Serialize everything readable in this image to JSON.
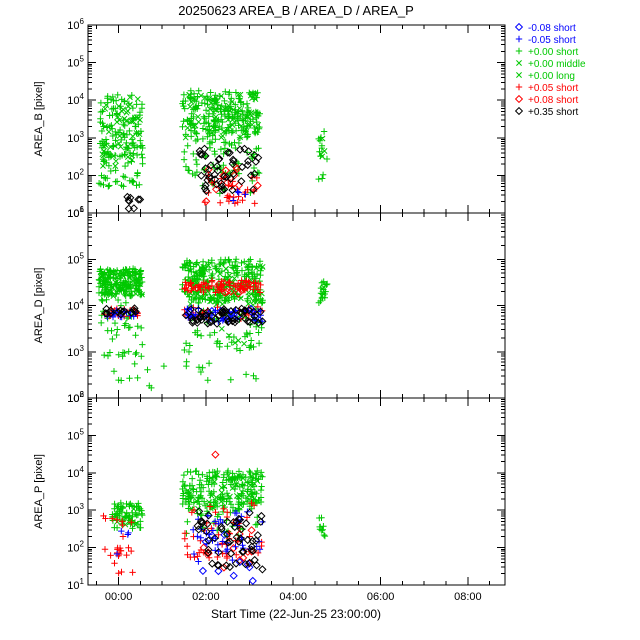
{
  "title": "20250623 AREA_B / AREA_D / AREA_P",
  "legend": {
    "items": [
      {
        "symbol": "diamond",
        "color": "#0000ff",
        "label": "-0.08 short"
      },
      {
        "symbol": "plus",
        "color": "#0000ff",
        "label": "-0.05 short"
      },
      {
        "symbol": "plus",
        "color": "#00c800",
        "label": "+0.00 short"
      },
      {
        "symbol": "cross",
        "color": "#00c800",
        "label": "+0.00 middle"
      },
      {
        "symbol": "cross",
        "color": "#00c800",
        "label": "+0.00 long"
      },
      {
        "symbol": "plus",
        "color": "#ff0000",
        "label": "+0.05 short"
      },
      {
        "symbol": "diamond",
        "color": "#ff0000",
        "label": "+0.08 short"
      },
      {
        "symbol": "diamond",
        "color": "#000000",
        "label": "+0.35 short"
      }
    ]
  },
  "chart_data": {
    "type": "scatter",
    "title": "20250623 AREA_B / AREA_D / AREA_P",
    "x": {
      "label": "Start Time (22-Jun-25 23:00:00)",
      "range": [
        -0.7,
        8.85
      ],
      "major_ticks": [
        0,
        2,
        4,
        6,
        8
      ],
      "tick_labels": [
        "00:00",
        "02:00",
        "04:00",
        "06:00",
        "08:00"
      ],
      "minor_step": 0.5,
      "units": "hours relative to 00:00 on 23-Jun-25"
    },
    "y_scale": "log10",
    "seed": 20250623,
    "cluster_format": "[n_points, x_min_hours, x_max_hours, log10_y_min, log10_y_max]",
    "panels": [
      {
        "ylabel": "AREA_B [pixel]",
        "log_range": [
          1,
          6
        ],
        "series": [
          {
            "legend": "+0.00 short",
            "symbol": "plus",
            "color": "#00c800",
            "clusters": [
              [
                90,
                -0.45,
                0.55,
                2.5,
                4.15
              ],
              [
                50,
                -0.45,
                0.55,
                1.7,
                2.9
              ],
              [
                180,
                1.45,
                3.25,
                3.1,
                4.25
              ],
              [
                70,
                1.5,
                3.25,
                2.0,
                3.2
              ],
              [
                15,
                1.9,
                3.1,
                1.5,
                2.2
              ],
              [
                12,
                4.58,
                4.78,
                1.9,
                3.2
              ]
            ]
          },
          {
            "legend": "+0.00 middle",
            "symbol": "cross",
            "color": "#00c800",
            "clusters": [
              [
                35,
                -0.4,
                0.5,
                2.2,
                4.1
              ],
              [
                45,
                1.5,
                3.2,
                3.0,
                4.2
              ],
              [
                4,
                4.6,
                4.75,
                2.2,
                3.0
              ]
            ]
          },
          {
            "legend": "+0.00 long",
            "symbol": "cross",
            "color": "#00c800",
            "clusters": [
              [
                12,
                -0.35,
                0.45,
                2.6,
                4.0
              ],
              [
                18,
                1.6,
                3.15,
                3.2,
                4.2
              ]
            ]
          },
          {
            "legend": "+0.05 short",
            "symbol": "plus",
            "color": "#ff0000",
            "clusters": [
              [
                32,
                1.9,
                3.25,
                1.25,
                2.1
              ]
            ]
          },
          {
            "legend": "+0.08 short",
            "symbol": "diamond",
            "color": "#ff0000",
            "clusters": [
              [
                12,
                2.0,
                3.2,
                1.3,
                2.3
              ]
            ]
          },
          {
            "legend": "-0.05 short",
            "symbol": "plus",
            "color": "#0000ff",
            "clusters": [
              [
                4,
                2.6,
                3.1,
                1.2,
                1.6
              ]
            ]
          },
          {
            "legend": "+0.35 short",
            "symbol": "diamond",
            "color": "#000000",
            "clusters": [
              [
                8,
                0.2,
                0.5,
                1.1,
                1.55
              ],
              [
                48,
                1.8,
                3.25,
                1.55,
                2.75
              ]
            ]
          }
        ]
      },
      {
        "ylabel": "AREA_D [pixel]",
        "log_range": [
          2,
          6
        ],
        "series": [
          {
            "legend": "+0.00 short",
            "symbol": "plus",
            "color": "#00c800",
            "clusters": [
              [
                140,
                -0.45,
                0.55,
                4.2,
                4.8
              ],
              [
                40,
                -0.4,
                0.55,
                2.9,
                4.15
              ],
              [
                5,
                -0.35,
                0.5,
                2.25,
                2.9
              ],
              [
                220,
                1.45,
                3.3,
                4.05,
                5.0
              ],
              [
                55,
                1.5,
                3.3,
                3.0,
                4.0
              ],
              [
                12,
                1.55,
                3.25,
                2.35,
                3.0
              ],
              [
                15,
                4.58,
                4.78,
                4.05,
                4.55
              ],
              [
                5,
                -0.3,
                1.2,
                2.2,
                2.9
              ]
            ]
          },
          {
            "legend": "+0.00 middle",
            "symbol": "cross",
            "color": "#00c800",
            "clusters": [
              [
                40,
                -0.45,
                0.55,
                4.2,
                4.75
              ],
              [
                60,
                1.5,
                3.3,
                4.0,
                4.9
              ],
              [
                8,
                1.6,
                3.2,
                3.1,
                3.9
              ],
              [
                4,
                4.6,
                4.75,
                4.1,
                4.4
              ]
            ]
          },
          {
            "legend": "+0.00 long",
            "symbol": "cross",
            "color": "#00c800",
            "clusters": [
              [
                12,
                -0.4,
                0.5,
                4.25,
                4.7
              ],
              [
                18,
                1.6,
                3.2,
                4.1,
                4.8
              ]
            ]
          },
          {
            "legend": "+0.05 short",
            "symbol": "plus",
            "color": "#ff0000",
            "clusters": [
              [
                20,
                -0.35,
                0.45,
                3.75,
                3.95
              ],
              [
                70,
                1.5,
                3.3,
                4.28,
                4.55
              ],
              [
                25,
                1.5,
                3.3,
                3.7,
                3.98
              ]
            ]
          },
          {
            "legend": "+0.08 short",
            "symbol": "diamond",
            "color": "#ff0000",
            "clusters": [
              [
                12,
                1.6,
                3.2,
                4.25,
                4.5
              ]
            ]
          },
          {
            "legend": "-0.05 short",
            "symbol": "plus",
            "color": "#0000ff",
            "clusters": [
              [
                15,
                -0.3,
                0.4,
                3.72,
                3.9
              ],
              [
                45,
                1.5,
                3.3,
                3.65,
                3.95
              ]
            ]
          },
          {
            "legend": "-0.08 short",
            "symbol": "diamond",
            "color": "#0000ff",
            "clusters": [
              [
                10,
                1.6,
                3.2,
                3.7,
                3.95
              ]
            ]
          },
          {
            "legend": "+0.35 short",
            "symbol": "diamond",
            "color": "#000000",
            "clusters": [
              [
                15,
                -0.3,
                0.45,
                3.78,
                3.97
              ],
              [
                55,
                1.5,
                3.3,
                3.6,
                3.95
              ]
            ]
          }
        ]
      },
      {
        "ylabel": "AREA_P [pixel]",
        "log_range": [
          1,
          6
        ],
        "series": [
          {
            "legend": "+0.00 short",
            "symbol": "plus",
            "color": "#00c800",
            "clusters": [
              [
                70,
                -0.15,
                0.55,
                2.5,
                3.2
              ],
              [
                190,
                1.45,
                3.3,
                3.0,
                4.05
              ],
              [
                30,
                1.5,
                3.3,
                2.3,
                3.0
              ],
              [
                10,
                4.58,
                4.75,
                2.3,
                2.9
              ]
            ]
          },
          {
            "legend": "+0.00 middle",
            "symbol": "cross",
            "color": "#00c800",
            "clusters": [
              [
                8,
                -0.1,
                0.5,
                2.6,
                3.1
              ],
              [
                25,
                1.5,
                3.25,
                3.0,
                3.95
              ]
            ]
          },
          {
            "legend": "+0.00 long",
            "symbol": "cross",
            "color": "#00c800",
            "clusters": [
              [
                10,
                1.6,
                3.2,
                3.1,
                3.9
              ]
            ]
          },
          {
            "legend": "+0.05 short",
            "symbol": "plus",
            "color": "#ff0000",
            "clusters": [
              [
                25,
                -0.35,
                0.35,
                1.2,
                2.9
              ],
              [
                50,
                1.5,
                3.3,
                1.7,
                3.2
              ]
            ]
          },
          {
            "legend": "+0.08 short",
            "symbol": "diamond",
            "color": "#ff0000",
            "clusters": [
              [
                1,
                2.2,
                2.22,
                4.45,
                4.5
              ],
              [
                12,
                1.8,
                3.2,
                1.3,
                2.7
              ]
            ]
          },
          {
            "legend": "-0.05 short",
            "symbol": "plus",
            "color": "#0000ff",
            "clusters": [
              [
                4,
                -0.05,
                0.3,
                1.8,
                2.5
              ],
              [
                45,
                1.6,
                3.3,
                1.6,
                3.0
              ]
            ]
          },
          {
            "legend": "-0.08 short",
            "symbol": "diamond",
            "color": "#0000ff",
            "clusters": [
              [
                10,
                1.9,
                3.2,
                1.1,
                2.4
              ]
            ]
          },
          {
            "legend": "+0.35 short",
            "symbol": "diamond",
            "color": "#000000",
            "clusters": [
              [
                55,
                1.8,
                3.3,
                1.4,
                3.0
              ]
            ]
          }
        ]
      }
    ]
  }
}
